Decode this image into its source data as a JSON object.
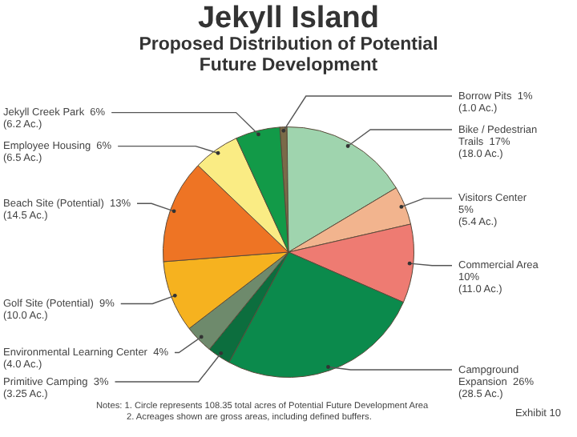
{
  "chart_data": {
    "type": "pie",
    "title": "Jekyll Island",
    "subtitle": "Proposed Distribution of Potential Future Development",
    "categories": [
      "Borrow Pits",
      "Bike / Pedestrian Trails",
      "Visitors Center",
      "Commercial Area",
      "Campground Expansion",
      "Primitive Camping",
      "Environmental Learning Center",
      "Golf Site (Potential)",
      "Beach Site (Potential)",
      "Employee Housing",
      "Jekyll Creek Park"
    ],
    "values": [
      1.0,
      18.0,
      5.4,
      11.0,
      28.5,
      3.25,
      4.0,
      10.0,
      14.5,
      6.5,
      6.2
    ],
    "value_labels": [
      "1%\n(1.0 Ac.)",
      "17%\n(18.0 Ac.)",
      "5%\n(5.4 Ac.)",
      "10%\n(11.0 Ac.)",
      "26%\n(28.5 Ac.)",
      "3%\n(3.25 Ac.)",
      "4%\n(4.0 Ac.)",
      "9%\n(10.0 Ac.)",
      "13%\n(14.5 Ac.)",
      "6%\n(6.5 Ac.)",
      "6%\n(6.2 Ac.)"
    ],
    "colors": [
      "#7a6a48",
      "#9fd4ae",
      "#f2b48e",
      "#ee7b72",
      "#0b8a4c",
      "#0c6e3e",
      "#6e8a6c",
      "#f6b21f",
      "#ee7424",
      "#faec84",
      "#129a48"
    ],
    "legend": false,
    "annotations": [
      "Notes: 1. Circle represents 108.35 total acres of Potential Future Development Area",
      "2. Acreages shown are gross areas, including defined buffers.",
      "Exhibit 10"
    ]
  }
}
